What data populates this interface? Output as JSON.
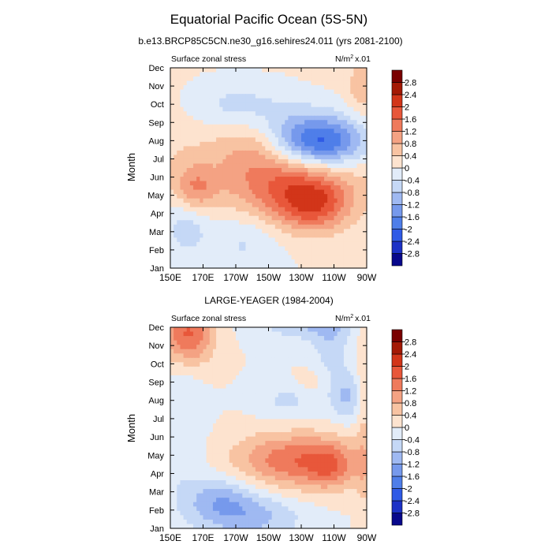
{
  "figure": {
    "title": "Equatorial Pacific Ocean (5S-5N)"
  },
  "colorbar": {
    "levels": [
      "-2.8",
      "-2.4",
      "-2",
      "-1.6",
      "-1.2",
      "-0.8",
      "-0.4",
      "0",
      "0.4",
      "0.8",
      "1.2",
      "1.6",
      "2",
      "2.4",
      "2.8"
    ],
    "colors": [
      "#08088c",
      "#1c31c6",
      "#2f5ae6",
      "#4f7ee9",
      "#7699ec",
      "#9fb9f2",
      "#c5d8f6",
      "#e2ecf9",
      "#fde3cf",
      "#f8c3a2",
      "#f4a283",
      "#ef7a5c",
      "#e8573a",
      "#d23519",
      "#a41905",
      "#7a0000"
    ]
  },
  "chart_data": [
    {
      "type": "heatmap",
      "title": "b.e13.BRCP85C5CN.ne30_g16.sehires24.011 (yrs 2081-2100)",
      "left_label": "Surface zonal stress",
      "units_main": "N/m",
      "units_sup": "2",
      "units_scale": "x.01",
      "ylabel": "Month",
      "x_ticks": [
        "150E",
        "170E",
        "170W",
        "150W",
        "130W",
        "110W",
        "90W"
      ],
      "y_ticks": [
        "Jan",
        "Feb",
        "Mar",
        "Apr",
        "May",
        "Jun",
        "Jul",
        "Aug",
        "Sep",
        "Oct",
        "Nov",
        "Dec"
      ],
      "xlim_deg_east": [
        150,
        270
      ],
      "blobs": [
        {
          "lon": 215,
          "mon": 6.7,
          "sx": 60,
          "sy": 2.4,
          "amp": 0.7
        },
        {
          "lon": 215,
          "mon": 8.0,
          "sx": 30,
          "sy": 1.4,
          "amp": -0.9
        },
        {
          "lon": 243,
          "mon": 6.9,
          "sx": 20,
          "sy": 1.0,
          "amp": -2.3
        },
        {
          "lon": 222,
          "mon": 4.4,
          "sx": 24,
          "sy": 1.3,
          "amp": 1.2
        },
        {
          "lon": 238,
          "mon": 3.4,
          "sx": 15,
          "sy": 1.0,
          "amp": 1.3
        },
        {
          "lon": 165,
          "mon": 4.3,
          "sx": 9,
          "sy": 0.9,
          "amp": 1.1
        },
        {
          "lon": 200,
          "mon": 6.9,
          "sx": 15,
          "sy": 1.2,
          "amp": 0.6
        },
        {
          "lon": 160,
          "mon": 2.5,
          "sx": 10,
          "sy": 1.3,
          "amp": -0.7
        },
        {
          "lon": 195,
          "mon": 1.5,
          "sx": 15,
          "sy": 1.2,
          "amp": -0.5
        },
        {
          "lon": 186,
          "mon": 9.0,
          "sx": 20,
          "sy": 1.0,
          "amp": -0.5
        },
        {
          "lon": 266,
          "mon": 10.0,
          "sx": 5,
          "sy": 1.0,
          "amp": 0.6
        }
      ]
    },
    {
      "type": "heatmap",
      "title": "LARGE-YEAGER (1984-2004)",
      "left_label": "Surface zonal stress",
      "units_main": "N/m",
      "units_sup": "2",
      "units_scale": "x.01",
      "ylabel": "Month",
      "x_ticks": [
        "150E",
        "170E",
        "170W",
        "150W",
        "130W",
        "110W",
        "90W"
      ],
      "y_ticks": [
        "Jan",
        "Feb",
        "Mar",
        "Apr",
        "May",
        "Jun",
        "Jul",
        "Aug",
        "Sep",
        "Oct",
        "Nov",
        "Dec"
      ],
      "xlim_deg_east": [
        150,
        270
      ],
      "blobs": [
        {
          "lon": 158,
          "mon": 10.9,
          "sx": 12,
          "sy": 1.3,
          "amp": 1.4
        },
        {
          "lon": 165,
          "mon": 10.2,
          "sx": 8,
          "sy": 0.9,
          "amp": 0.5
        },
        {
          "lon": 240,
          "mon": 3.6,
          "sx": 25,
          "sy": 1.1,
          "amp": 1.0
        },
        {
          "lon": 215,
          "mon": 3.8,
          "sx": 22,
          "sy": 1.0,
          "amp": 0.8
        },
        {
          "lon": 247,
          "mon": 3.4,
          "sx": 9,
          "sy": 0.8,
          "amp": 0.7
        },
        {
          "lon": 236,
          "mon": 8.0,
          "sx": 8,
          "sy": 0.5,
          "amp": 0.3
        },
        {
          "lon": 232,
          "mon": 11.5,
          "sx": 20,
          "sy": 0.8,
          "amp": -0.9
        },
        {
          "lon": 248,
          "mon": 10.3,
          "sx": 8,
          "sy": 1.8,
          "amp": -0.6
        },
        {
          "lon": 258,
          "mon": 7.2,
          "sx": 7,
          "sy": 0.9,
          "amp": -0.8
        },
        {
          "lon": 222,
          "mon": 7.0,
          "sx": 13,
          "sy": 0.7,
          "amp": -0.5
        },
        {
          "lon": 180,
          "mon": 1.6,
          "sx": 15,
          "sy": 0.9,
          "amp": -0.9
        },
        {
          "lon": 200,
          "mon": 0.6,
          "sx": 22,
          "sy": 0.9,
          "amp": -0.9
        },
        {
          "lon": 157,
          "mon": 5.5,
          "sx": 9,
          "sy": 3.0,
          "amp": -0.4
        },
        {
          "lon": 268,
          "mon": 6.0,
          "sx": 3,
          "sy": 6.0,
          "amp": 0.4
        }
      ]
    }
  ]
}
